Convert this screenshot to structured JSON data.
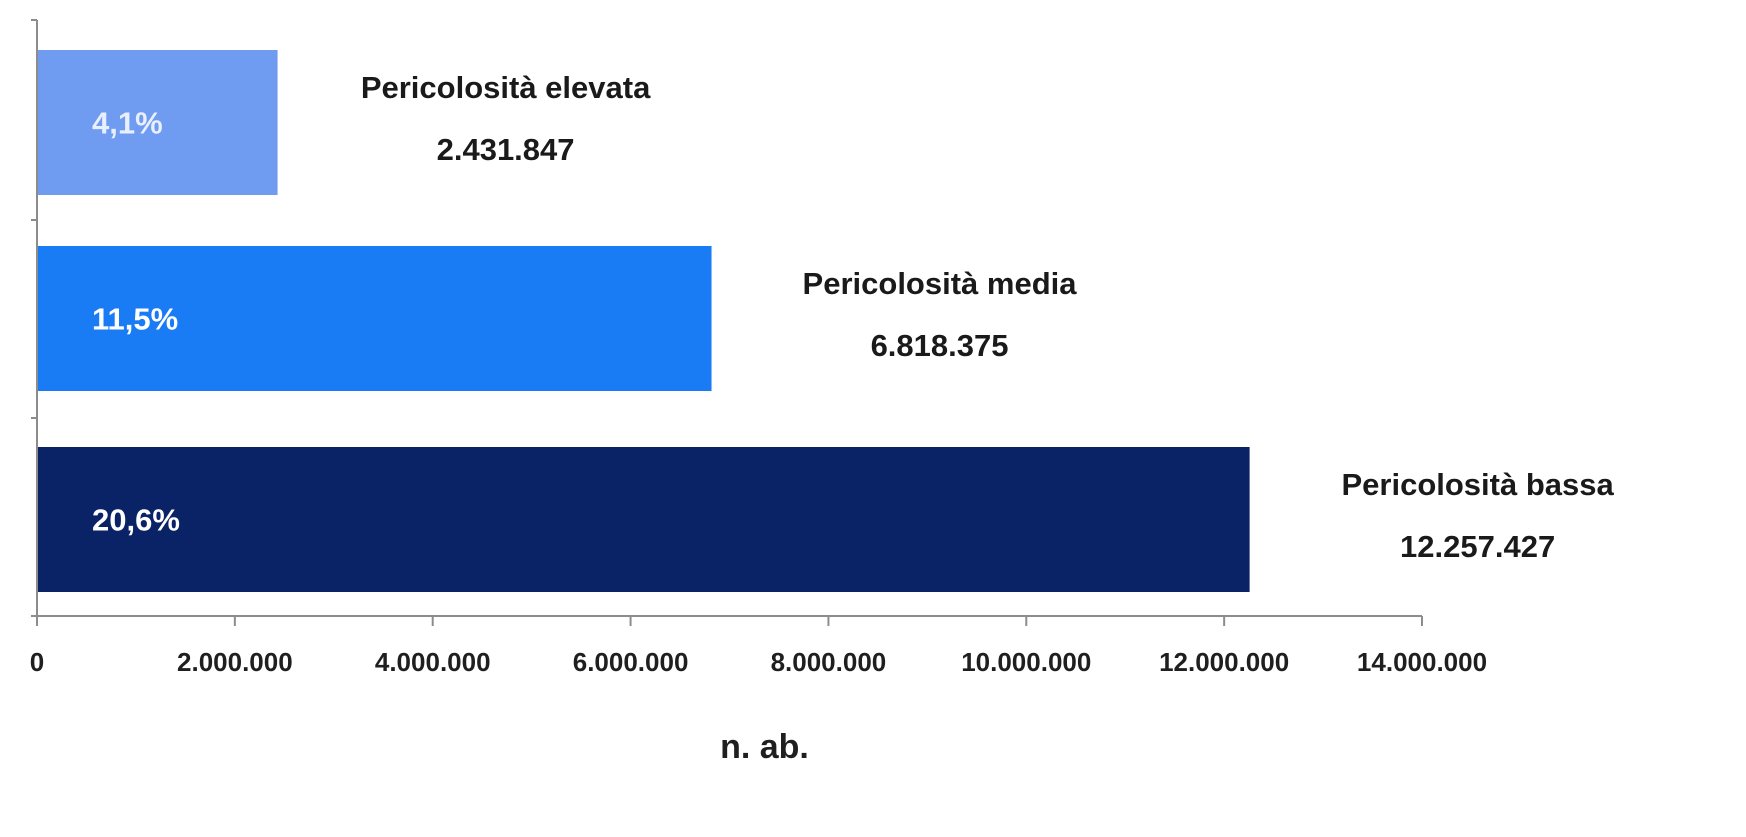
{
  "chart_data": {
    "type": "bar",
    "orientation": "horizontal",
    "categories": [
      "Pericolosità elevata",
      "Pericolosità media",
      "Pericolosità bassa"
    ],
    "values": [
      2431847,
      6818375,
      12257427
    ],
    "value_labels": [
      "2.431.847",
      "6.818.375",
      "12.257.427"
    ],
    "percent_labels": [
      "4,1%",
      "11,5%",
      "20,6%"
    ],
    "colors": [
      "#6f9cf0",
      "#1a7cf5",
      "#0a2266"
    ],
    "percent_label_colors": [
      "#e8efff",
      "#ffffff",
      "#ffffff"
    ],
    "xlabel": "n. ab.",
    "xlim": [
      0,
      14000000
    ],
    "xticks": [
      0,
      2000000,
      4000000,
      6000000,
      8000000,
      10000000,
      12000000,
      14000000
    ],
    "xtick_labels": [
      "0",
      "2.000.000",
      "4.000.000",
      "6.000.000",
      "8.000.000",
      "10.000.000",
      "12.000.000",
      "14.000.000"
    ],
    "grid": false,
    "legend": "none"
  }
}
